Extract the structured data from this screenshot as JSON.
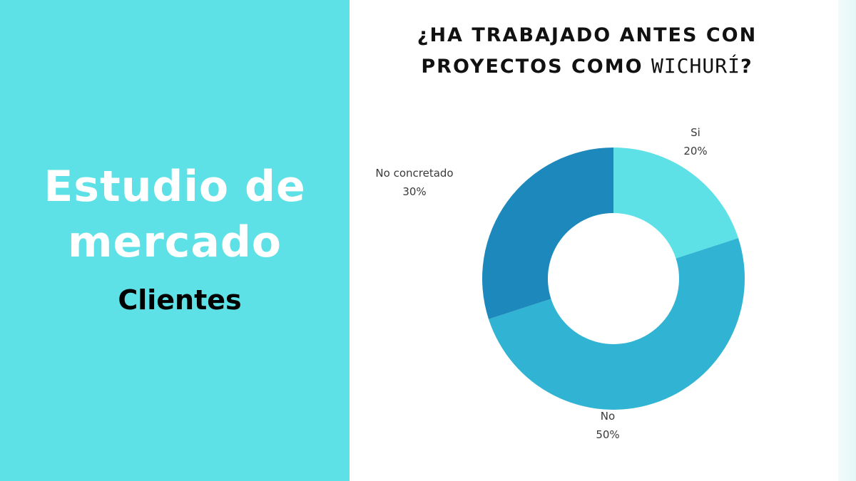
{
  "left": {
    "title_line1": "Estudio de",
    "title_line2": "mercado",
    "subtitle": "Clientes"
  },
  "chart_data": {
    "type": "pie",
    "title_line1": "¿HA TRABAJADO ANTES CON",
    "title_line2_prefix": "PROYECTOS COMO ",
    "title_brand": "WICHURÍ",
    "title_line2_suffix": "?",
    "slices": [
      {
        "label": "Si",
        "value": 20,
        "value_label": "20%",
        "color": "#5ee1e6"
      },
      {
        "label": "No",
        "value": 50,
        "value_label": "50%",
        "color": "#31b3d4"
      },
      {
        "label": "No concretado",
        "value": 30,
        "value_label": "30%",
        "color": "#1d88bb"
      }
    ],
    "donut": true
  },
  "colors": {
    "left_panel": "#5ee1e6",
    "heading_text": "#ffffff",
    "subheading_text": "#000000"
  }
}
